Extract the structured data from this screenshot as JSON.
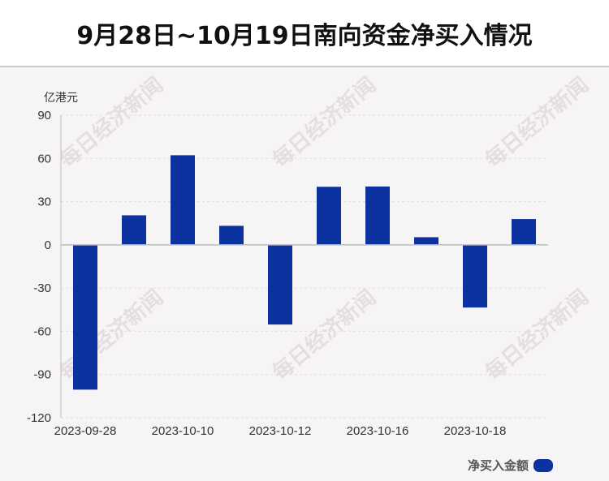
{
  "header": {
    "title": "9月28日~10月19日南向资金净买入情况"
  },
  "watermark": "每日经济新闻",
  "colors": {
    "bar": "#0c32a0",
    "panel": "#f7f4f6",
    "grid": "#e2dcdf"
  },
  "chart_data": {
    "type": "bar",
    "title": "9月28日~10月19日南向资金净买入情况",
    "ylabel": "亿港元",
    "ylim": [
      -120,
      90
    ],
    "yticks": [
      90,
      60,
      30,
      0,
      -30,
      -60,
      -90,
      -120
    ],
    "x_tick_labels": [
      "2023-09-28",
      "2023-10-10",
      "2023-10-12",
      "2023-10-16",
      "2023-10-18"
    ],
    "categories": [
      "2023-09-28",
      "",
      "2023-10-10",
      "",
      "2023-10-12",
      "",
      "2023-10-16",
      "",
      "2023-10-18",
      ""
    ],
    "series": [
      {
        "name": "净买入金额",
        "values": [
          -100.5,
          20.5,
          62.2,
          13.2,
          -55.3,
          40.3,
          40.5,
          5.3,
          -43.5,
          17.9
        ]
      }
    ],
    "grid": true,
    "legend": "bottom-right"
  }
}
